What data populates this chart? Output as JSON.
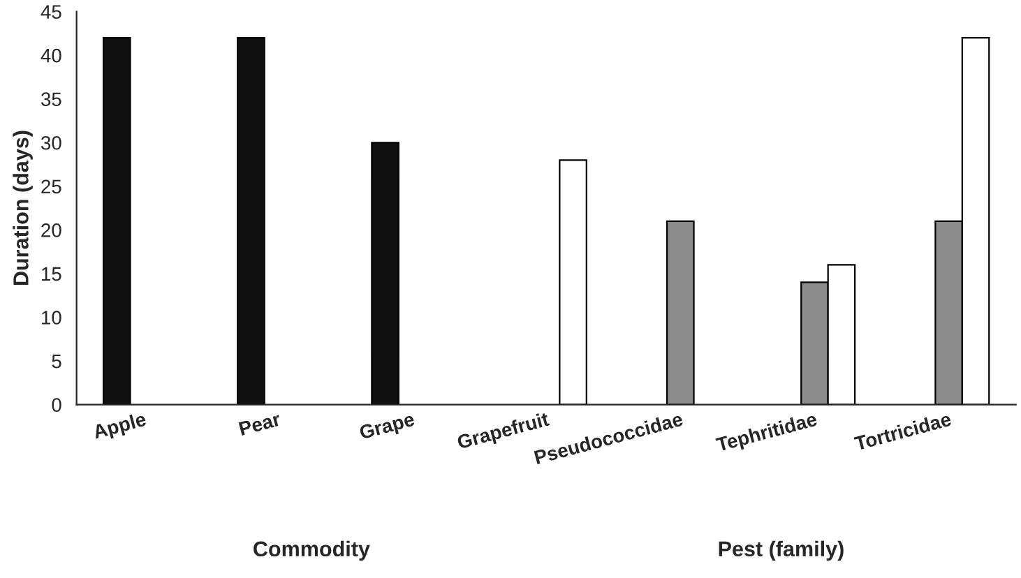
{
  "chart_data": {
    "type": "bar",
    "ylabel": "Duration (days)",
    "categories": [
      "Apple",
      "Pear",
      "Grape",
      "Grapefruit",
      "Pseudococcidae",
      "Tephritidae",
      "Tortricidae"
    ],
    "series": [
      {
        "color": "#111111",
        "values": [
          42,
          42,
          30,
          null,
          null,
          null,
          null
        ]
      },
      {
        "color": "#8c8c8c",
        "values": [
          null,
          null,
          null,
          null,
          21,
          14,
          21
        ]
      },
      {
        "color": "#ffffff",
        "values": [
          null,
          null,
          null,
          28,
          null,
          16,
          42
        ]
      }
    ],
    "ylim": [
      0,
      45
    ],
    "yticks": [
      0,
      5,
      10,
      15,
      20,
      25,
      30,
      35,
      40,
      45
    ],
    "grid": false,
    "legend": false,
    "annotations": [
      "Commodity",
      "Pest (family)"
    ]
  }
}
